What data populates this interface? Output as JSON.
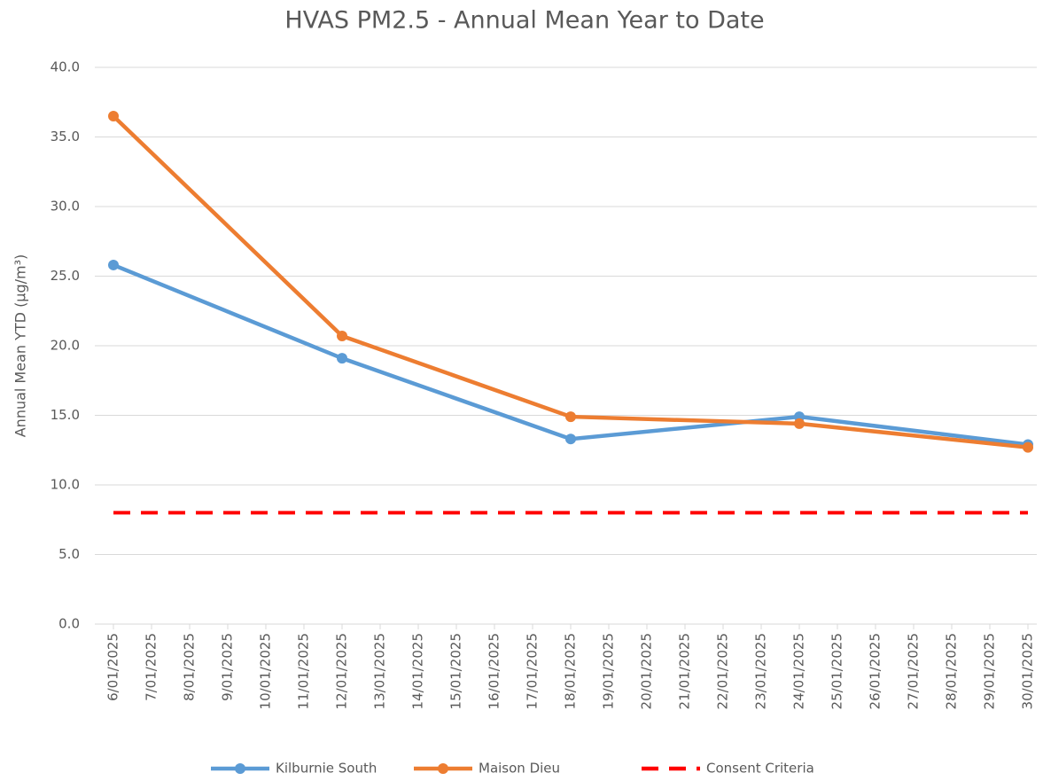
{
  "chart_data": {
    "type": "line",
    "title": "HVAS PM2.5 - Annual Mean Year to Date",
    "y_label": "Annual Mean YTD (μg/m³)",
    "x": [
      "6/01/2025",
      "12/01/2025",
      "18/01/2025",
      "24/01/2025",
      "30/01/2025"
    ],
    "xlim": [
      "6/01/2025",
      "30/01/2025"
    ],
    "xticks": [
      "6/01/2025",
      "7/01/2025",
      "8/01/2025",
      "9/01/2025",
      "10/01/2025",
      "11/01/2025",
      "12/01/2025",
      "13/01/2025",
      "14/01/2025",
      "15/01/2025",
      "16/01/2025",
      "17/01/2025",
      "18/01/2025",
      "19/01/2025",
      "20/01/2025",
      "21/01/2025",
      "22/01/2025",
      "23/01/2025",
      "24/01/2025",
      "25/01/2025",
      "26/01/2025",
      "27/01/2025",
      "28/01/2025",
      "29/01/2025",
      "30/01/2025"
    ],
    "ylim": [
      0,
      40
    ],
    "yticks": [
      {
        "value": 0,
        "label": "0.0"
      },
      {
        "value": 5,
        "label": "5.0"
      },
      {
        "value": 10,
        "label": "10.0"
      },
      {
        "value": 15,
        "label": "15.0"
      },
      {
        "value": 20,
        "label": "20.0"
      },
      {
        "value": 25,
        "label": "25.0"
      },
      {
        "value": 30,
        "label": "30.0"
      },
      {
        "value": 35,
        "label": "35.0"
      },
      {
        "value": 40,
        "label": "40.0"
      }
    ],
    "grid": true,
    "legend": "bottom",
    "series": [
      {
        "name": "Kilburnie South",
        "color": "#5b9bd5",
        "values": [
          25.8,
          19.1,
          13.3,
          14.9,
          12.9
        ],
        "markers": true
      },
      {
        "name": "Maison Dieu",
        "color": "#ed7d31",
        "values": [
          36.5,
          20.7,
          14.9,
          14.4,
          12.7
        ],
        "markers": true
      },
      {
        "name": "Consent Criteria",
        "color": "#ff0000",
        "values": [
          8,
          8,
          8,
          8,
          8
        ],
        "markers": false,
        "dashed": true
      }
    ]
  }
}
